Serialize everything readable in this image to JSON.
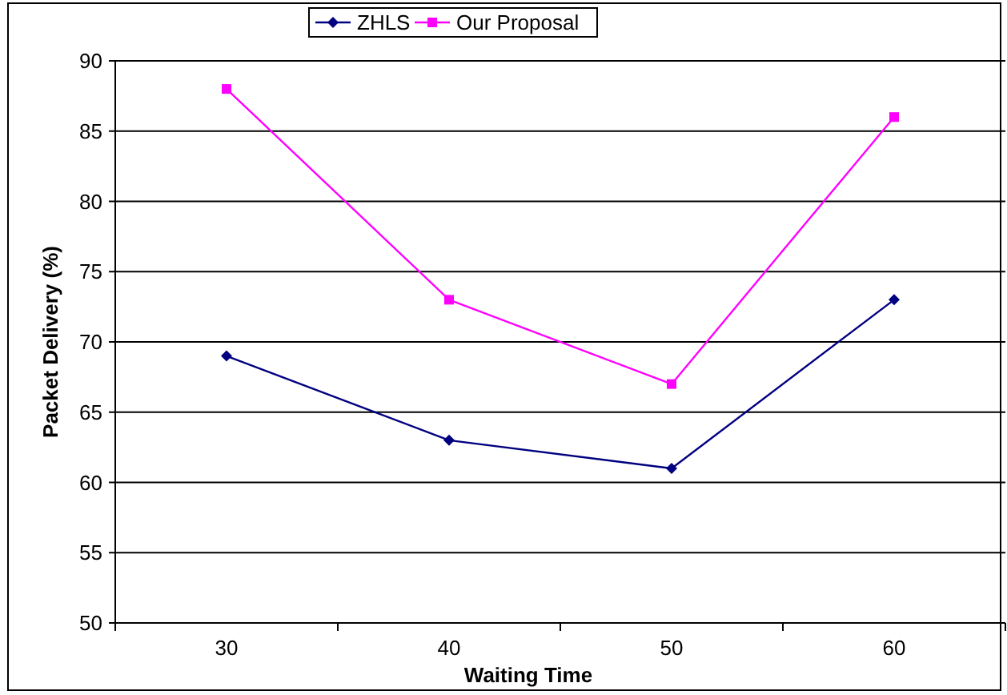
{
  "chart_data": {
    "type": "line",
    "xlabel": "Waiting Time",
    "ylabel": "Packet Delivery (%)",
    "categories": [
      "30",
      "40",
      "50",
      "60"
    ],
    "series": [
      {
        "name": "ZHLS",
        "color": "#000080",
        "marker": "diamond",
        "values": [
          69,
          63,
          61,
          73
        ]
      },
      {
        "name": "Our Proposal",
        "color": "#ff00ff",
        "marker": "square",
        "values": [
          88,
          73,
          67,
          86
        ]
      }
    ],
    "ylim": [
      50,
      90
    ],
    "yticks": [
      50,
      55,
      60,
      65,
      70,
      75,
      80,
      85,
      90
    ],
    "grid": "y",
    "legend": "top"
  }
}
